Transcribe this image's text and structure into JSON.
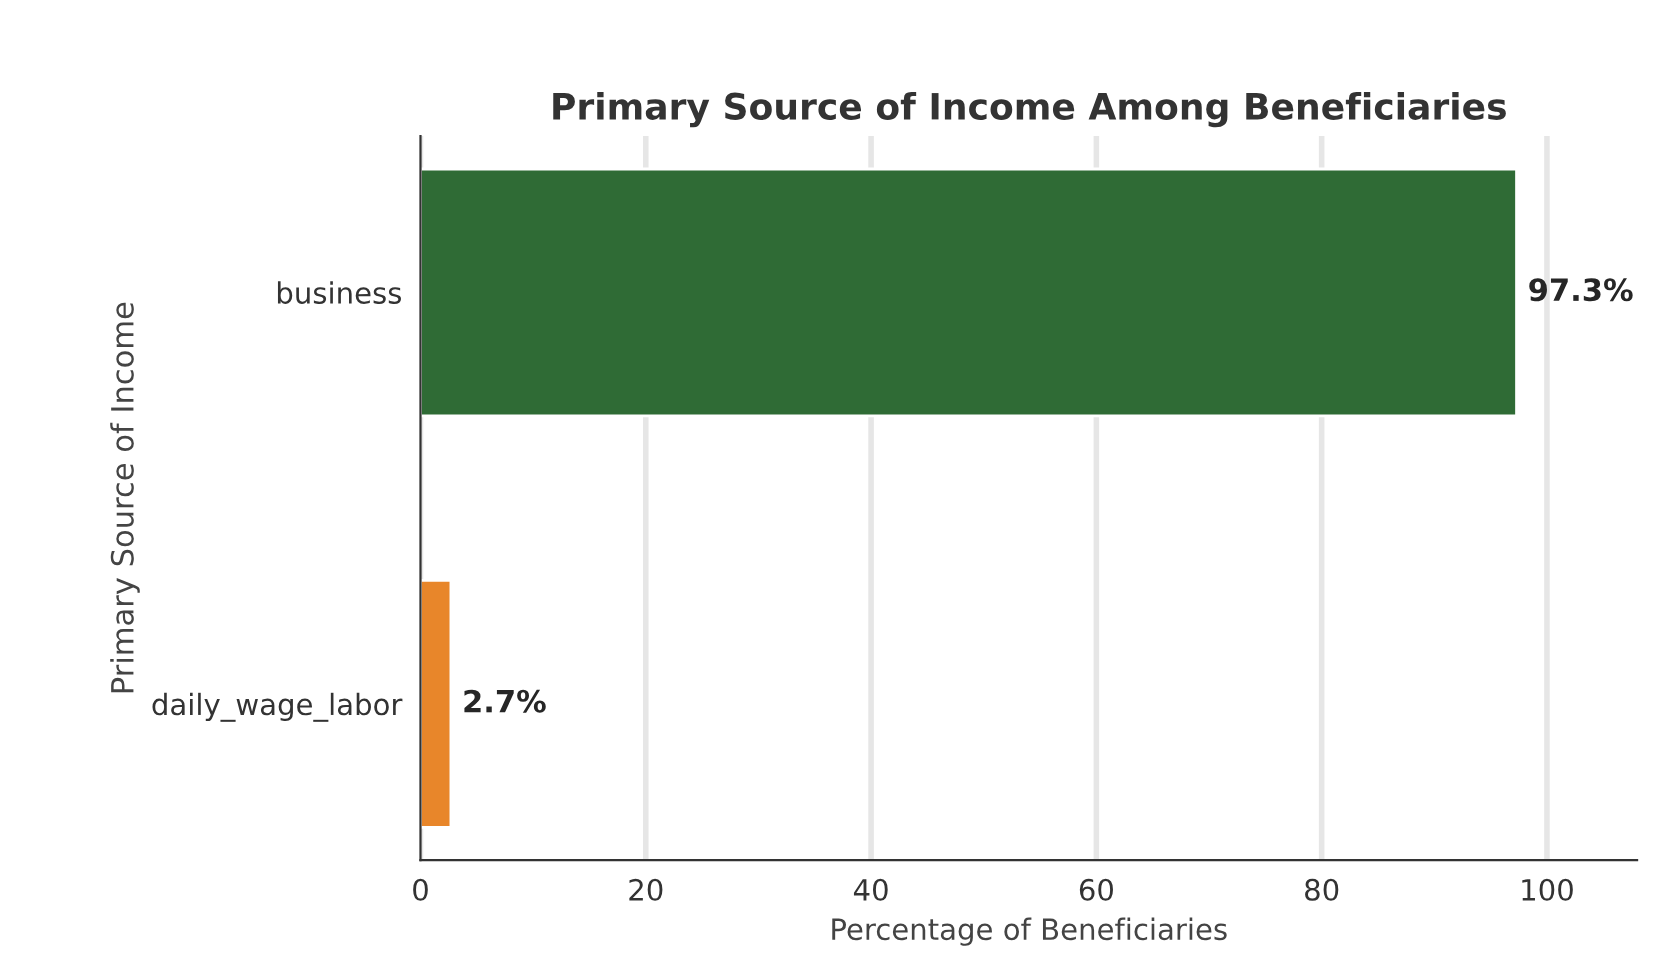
{
  "chart_data": {
    "type": "bar",
    "orientation": "horizontal",
    "title": "Primary Source of Income Among Beneficiaries",
    "xlabel": "Percentage of Beneficiaries",
    "ylabel": "Primary Source of Income",
    "categories": [
      "business",
      "daily_wage_labor"
    ],
    "values": [
      97.3,
      2.7
    ],
    "colors": [
      "#2f6b35",
      "#e8862a"
    ],
    "value_labels": [
      "97.3%",
      "2.7%"
    ],
    "xlim": [
      0,
      108
    ],
    "xticks": [
      0,
      20,
      40,
      60,
      80,
      100
    ],
    "grid": "x"
  }
}
